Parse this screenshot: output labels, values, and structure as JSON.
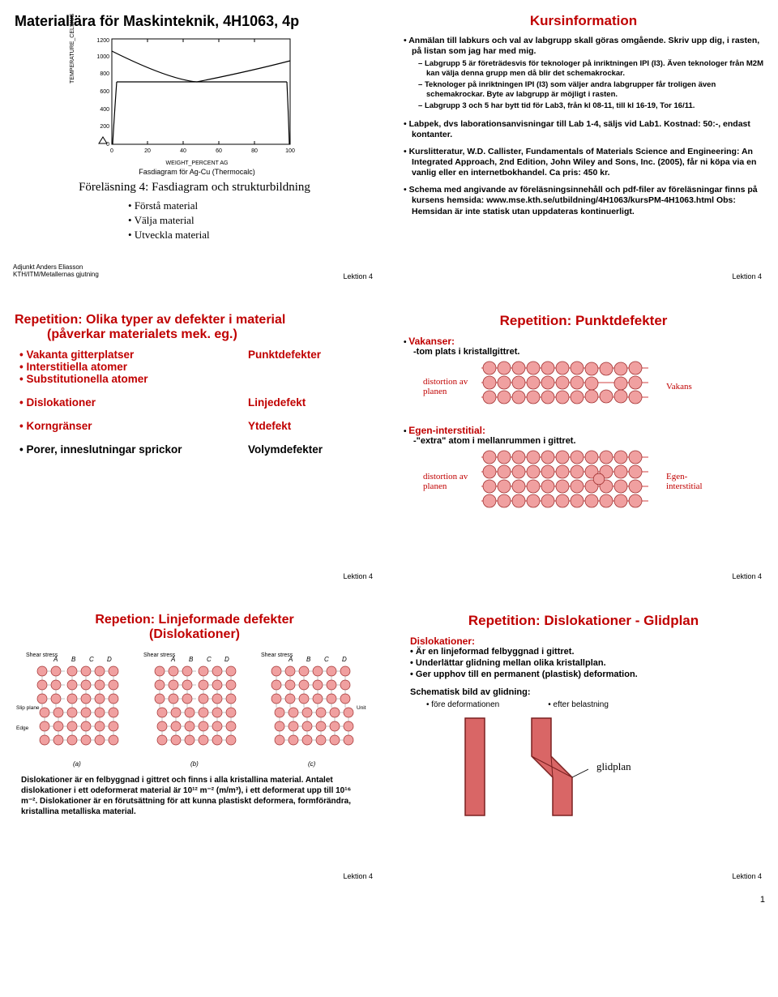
{
  "lektion": "Lektion 4",
  "page_number": "1",
  "slide1": {
    "title": "Materiallära för Maskinteknik, 4H1063, 4p",
    "ylabel": "TEMPERATURE_CELSIUS",
    "xlabel": "WEIGHT_PERCENT AG",
    "yticks": [
      "0",
      "200",
      "400",
      "600",
      "800",
      "1000",
      "1200"
    ],
    "xticks": [
      "0",
      "20",
      "40",
      "60",
      "80",
      "100"
    ],
    "chart_caption": "Fasdiagram för Ag-Cu (Thermocalc)",
    "subtitle": "Föreläsning 4: Fasdiagram och strukturbildning",
    "goals": [
      "Förstå material",
      "Välja material",
      "Utveckla material"
    ],
    "author_line1": "Adjunkt Anders Eliasson",
    "author_line2": "KTH/ITM/Metallernas gjutning",
    "curve_color": "#000000",
    "bg": "#ffffff"
  },
  "slide2": {
    "title": "Kursinformation",
    "b1": "Anmälan till labkurs och val av labgrupp skall göras omgående. Skriv upp dig, i rasten, på listan som jag har med mig.",
    "d1": "Labgrupp 5 är företrädesvis för teknologer på inriktningen IPI (I3). Även teknologer från M2M kan välja denna grupp men då blir det schemakrockar.",
    "d2": "Teknologer på inriktningen IPI (I3) som väljer andra labgrupper får troligen även schemakrockar. Byte av labgrupp är möjligt i rasten.",
    "d3": "Labgrupp 3 och 5 har bytt tid för Lab3, från kl 08-11, till kl 16-19, Tor 16/11.",
    "b2": "Labpek, dvs laborationsanvisningar till Lab 1-4, säljs vid Lab1. Kostnad: 50:-, endast kontanter.",
    "b3": "Kurslitteratur, W.D. Callister, Fundamentals of Materials Science and Engineering: An Integrated Approach, 2nd Edition, John Wiley and Sons, Inc. (2005), får ni köpa via en vanlig eller en internetbokhandel. Ca pris: 450 kr.",
    "b4": "Schema med angivande av föreläsningsinnehåll och pdf-filer av föreläsningar finns på kursens hemsida: www.mse.kth.se/utbildning/4H1063/kursPM-4H1063.html Obs: Hemsidan är inte statisk utan uppdateras kontinuerligt."
  },
  "slide3": {
    "title_l1": "Repetition: Olika typer av defekter i material",
    "title_l2": "(påverkar materialets mek. eg.)",
    "rows": [
      {
        "left": [
          "Vakanta gitterplatser",
          "Interstitiella atomer",
          "Substitutionella atomer"
        ],
        "left_color": "red",
        "right": "Punktdefekter",
        "right_color": "red"
      },
      {
        "left": [
          "Dislokationer"
        ],
        "left_color": "red",
        "right": "Linjedefekt",
        "right_color": "red"
      },
      {
        "left": [
          "Korngränser"
        ],
        "left_color": "red",
        "right": "Ytdefekt",
        "right_color": "red"
      },
      {
        "left": [
          "Porer, inneslutningar sprickor"
        ],
        "left_color": "black",
        "right": "Volymdefekter",
        "right_color": "black"
      }
    ]
  },
  "slide4": {
    "title": "Repetition: Punktdefekter",
    "sec1_h": "Vakanser:",
    "sec1_t": "-tom plats i kristallgittret.",
    "sec1_label_l": "distortion av planen",
    "sec1_label_r": "Vakans",
    "sec2_h": "Egen-interstitial:",
    "sec2_t": "-\"extra\" atom i mellanrummen i gittret.",
    "sec2_label_l": "distortion av planen",
    "sec2_label_r": "Egen-interstitial",
    "atom_color": "#f0a0a0",
    "atom_stroke": "#a03030"
  },
  "slide5": {
    "title_l1": "Repetion: Linjeformade defekter",
    "title_l2": "(Dislokationer)",
    "labels": {
      "shear": "Shear stress",
      "a": "A",
      "b": "B",
      "c": "C",
      "d": "D",
      "slip": "Slip plane",
      "edge": "Edge dislocation line",
      "unit": "Unit step of slip",
      "pa": "(a)",
      "pb": "(b)",
      "pc": "(c)"
    },
    "caption": "Dislokationer är en felbyggnad i gittret och finns i alla kristallina material.  Antalet dislokationer i ett odeformerat material är 10¹² m⁻² (m/m³), i ett deformerat upp till 10¹⁶ m⁻². Dislokationer är en förutsättning för att kunna plastiskt deformera, formförändra, kristallina metalliska material.",
    "atom_color": "#f0a0a0",
    "atom_stroke": "#a03030"
  },
  "slide6": {
    "title": "Repetition: Dislokationer - Glidplan",
    "sub": "Dislokationer:",
    "i1": "Är en linjeformad felbyggnad i gittret.",
    "i2": "Underlättar glidning mellan olika kristallplan.",
    "i3": "Ger upphov till en permanent (plastisk) deformation.",
    "schem": "Schematisk bild av glidning:",
    "lbl_before": "före deformationen",
    "lbl_after": "efter belastning",
    "lbl_glid": "glidplan",
    "bar_fill": "#d96666",
    "bar_stroke": "#7a2020"
  }
}
